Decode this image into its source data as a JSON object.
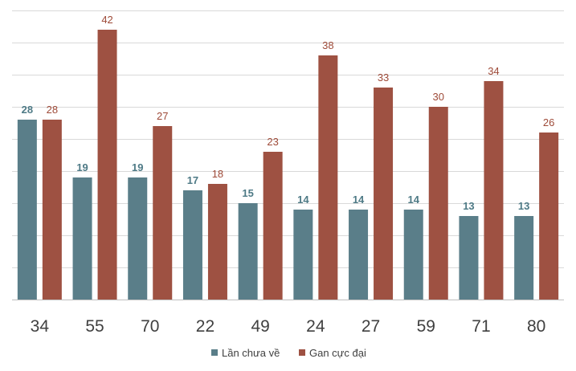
{
  "chart_data": {
    "type": "bar",
    "title": "",
    "xlabel": "",
    "ylabel": "",
    "ylim": [
      0,
      45
    ],
    "grid": true,
    "legend_position": "bottom",
    "categories": [
      "34",
      "55",
      "70",
      "22",
      "49",
      "24",
      "27",
      "59",
      "71",
      "80"
    ],
    "series": [
      {
        "name": "Lần chưa về",
        "color": "#5a7e89",
        "label_color": "#4e7a86",
        "values": [
          28,
          19,
          19,
          17,
          15,
          14,
          14,
          14,
          13,
          13
        ]
      },
      {
        "name": "Gan cực đại",
        "color": "#9e5142",
        "label_color": "#9e4a38",
        "values": [
          28,
          42,
          27,
          18,
          23,
          38,
          33,
          30,
          34,
          26
        ]
      }
    ]
  }
}
